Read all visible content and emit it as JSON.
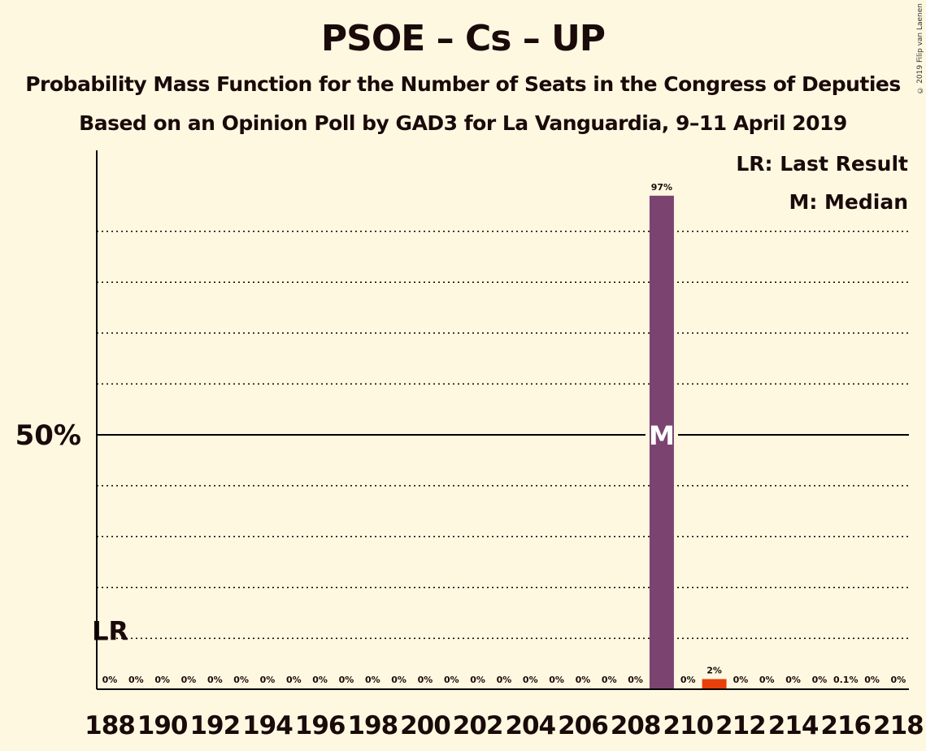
{
  "title": "PSOE – Cs – UP",
  "subtitle1": "Probability Mass Function for the Number of Seats in the Congress of Deputies",
  "subtitle2": "Based on an Opinion Poll by GAD3 for La Vanguardia, 9–11 April 2019",
  "copyright": "© 2019 Filip van Laenen",
  "legend": {
    "last_result": "LR: Last Result",
    "median": "M: Median"
  },
  "colors": {
    "background": "#FFF8E1",
    "median_bar": "#7B4470",
    "other_bar": "#E8400C",
    "axis": "#000000"
  },
  "chart_data": {
    "type": "bar",
    "x_tick_labels": [
      "188",
      "190",
      "192",
      "194",
      "196",
      "198",
      "200",
      "202",
      "204",
      "206",
      "208",
      "210",
      "212",
      "214",
      "216",
      "218"
    ],
    "categories": [
      188,
      189,
      190,
      191,
      192,
      193,
      194,
      195,
      196,
      197,
      198,
      199,
      200,
      201,
      202,
      203,
      204,
      205,
      206,
      207,
      208,
      209,
      210,
      211,
      212,
      213,
      214,
      215,
      216,
      217,
      218
    ],
    "values": [
      0,
      0,
      0,
      0,
      0,
      0,
      0,
      0,
      0,
      0,
      0,
      0,
      0,
      0,
      0,
      0,
      0,
      0,
      0,
      0,
      0,
      97,
      0,
      2,
      0,
      0,
      0,
      0,
      0.1,
      0,
      0
    ],
    "labels": [
      "0%",
      "0%",
      "0%",
      "0%",
      "0%",
      "0%",
      "0%",
      "0%",
      "0%",
      "0%",
      "0%",
      "0%",
      "0%",
      "0%",
      "0%",
      "0%",
      "0%",
      "0%",
      "0%",
      "0%",
      "0%",
      "97%",
      "0%",
      "2%",
      "0%",
      "0%",
      "0%",
      "0%",
      "0.1%",
      "0%",
      "0%"
    ],
    "ylim": [
      0,
      100
    ],
    "y_tick_label": "50%",
    "y_tick_value": 50,
    "dotted_gridlines": [
      10,
      20,
      30,
      40,
      60,
      70,
      80,
      90
    ],
    "median_seat": 209,
    "median_marker": "M",
    "last_result_seat": 188,
    "last_result_marker": "LR",
    "last_result_level": 10,
    "bar_colors": {
      "209": "#7B4470",
      "211": "#E8400C"
    }
  }
}
